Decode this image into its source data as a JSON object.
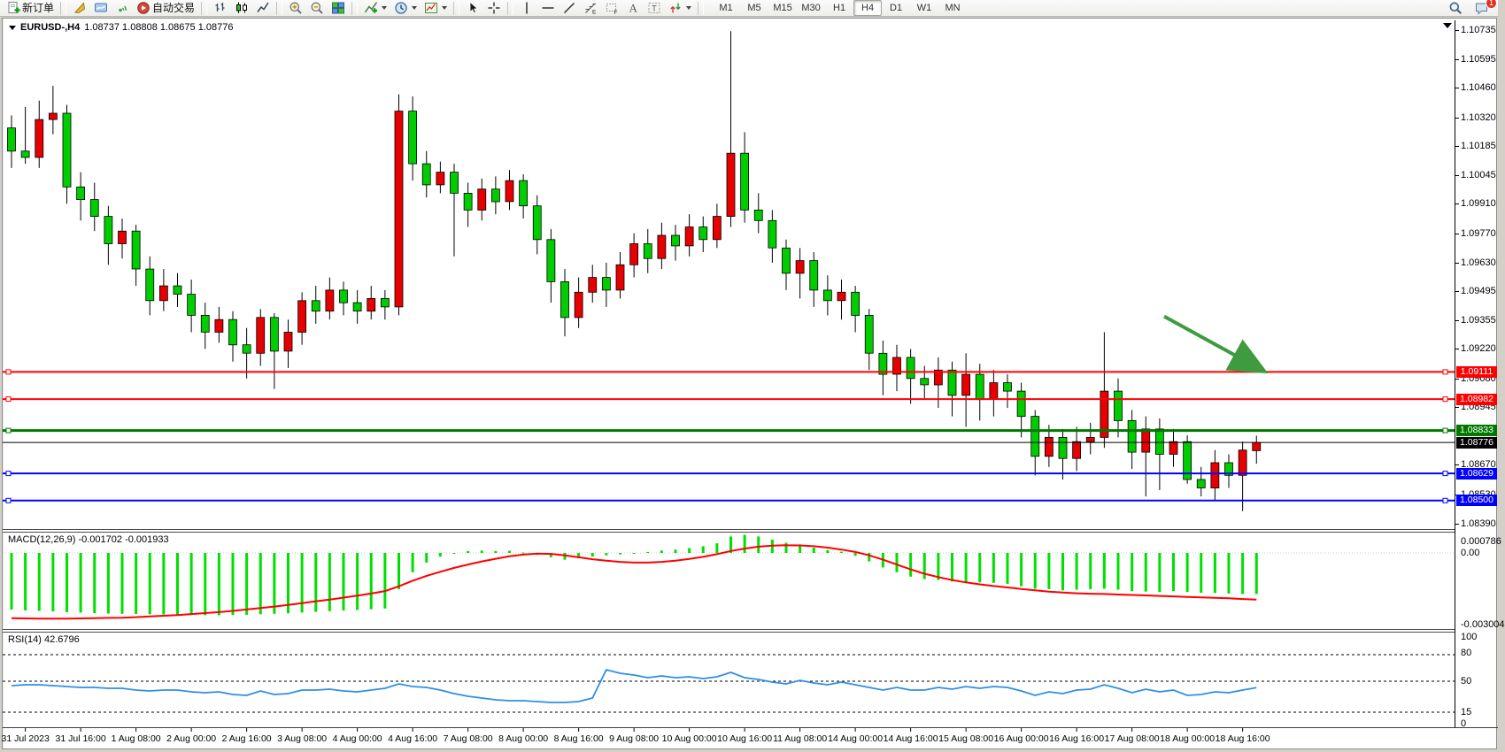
{
  "window": {
    "symbol_period": "EURUSD-,H4",
    "quote_line": "1.08737 1.08808 1.08675 1.08776"
  },
  "toolbar": {
    "items": [
      {
        "icon": "new-order",
        "label": "新订单"
      },
      {
        "sep": true
      },
      {
        "icon": "gold-seal"
      },
      {
        "icon": "trade-watch"
      },
      {
        "icon": "signal"
      },
      {
        "icon": "auto-trading",
        "label": "自动交易"
      },
      {
        "sep": true
      },
      {
        "icon": "chart-bars"
      },
      {
        "icon": "chart-candles"
      },
      {
        "icon": "chart-line"
      },
      {
        "sep": true
      },
      {
        "icon": "zoom-in"
      },
      {
        "icon": "zoom-out"
      },
      {
        "icon": "tile-windows"
      },
      {
        "sep": true
      },
      {
        "icon": "add-indicator",
        "caret": true
      },
      {
        "icon": "periods-clock",
        "caret": true
      },
      {
        "icon": "templates",
        "caret": true
      },
      {
        "sep": true
      },
      {
        "icon": "cursor"
      },
      {
        "icon": "crosshair"
      },
      {
        "sep": true
      },
      {
        "icon": "vertical-line"
      },
      {
        "icon": "horizontal-line"
      },
      {
        "icon": "trendline"
      },
      {
        "icon": "fibonacci"
      },
      {
        "icon": "channel"
      },
      {
        "icon": "text"
      },
      {
        "icon": "text-label"
      },
      {
        "icon": "arrows",
        "caret": true
      },
      {
        "sep": true
      }
    ],
    "timeframes": [
      "M1",
      "M5",
      "M15",
      "M30",
      "H1",
      "H4",
      "D1",
      "W1",
      "MN"
    ],
    "active_timeframe": "H4",
    "right": [
      {
        "icon": "search"
      },
      {
        "icon": "alerts",
        "badge": "1"
      }
    ]
  },
  "chart_data": {
    "type": "candlestick",
    "title": "EURUSD-,H4",
    "ohlc_header": {
      "open": "1.08737",
      "high": "1.08808",
      "low": "1.08675",
      "close": "1.08776"
    },
    "colors": {
      "bull": "#e60000",
      "bear": "#00cc00",
      "wick": "#000000",
      "macd_bar": "#00e000",
      "macd_signal": "#ff0000",
      "rsi_line": "#2e8fe5",
      "background": "#ffffff"
    },
    "price_axis_ticks": [
      "1.10735",
      "1.10595",
      "1.10460",
      "1.10320",
      "1.10185",
      "1.10045",
      "1.09910",
      "1.09770",
      "1.09630",
      "1.09495",
      "1.09355",
      "1.09220",
      "1.09080",
      "1.08945",
      "1.08670",
      "1.08530",
      "1.08390"
    ],
    "hlines": [
      {
        "price": 1.09111,
        "label": "1.09111",
        "color": "#ff0000",
        "width": 2,
        "markers": true
      },
      {
        "price": 1.08982,
        "label": "1.08982",
        "color": "#ff0000",
        "width": 2,
        "markers": true
      },
      {
        "price": 1.08833,
        "label": "1.08833",
        "color": "#007800",
        "width": 3,
        "markers": true
      },
      {
        "price": 1.08776,
        "label": "1.08776",
        "color": "#000000",
        "width": 1,
        "markers": false
      },
      {
        "price": 1.08629,
        "label": "1.08629",
        "color": "#0000ff",
        "width": 2,
        "markers": true
      },
      {
        "price": 1.085,
        "label": "1.08500",
        "color": "#0000ff",
        "width": 2,
        "markers": true
      }
    ],
    "x_labels": [
      "31 Jul 2023",
      "31 Jul 16:00",
      "1 Aug 08:00",
      "2 Aug 00:00",
      "2 Aug 16:00",
      "3 Aug 08:00",
      "4 Aug 00:00",
      "4 Aug 16:00",
      "7 Aug 08:00",
      "8 Aug 00:00",
      "8 Aug 16:00",
      "9 Aug 08:00",
      "10 Aug 00:00",
      "10 Aug 16:00",
      "11 Aug 08:00",
      "14 Aug 00:00",
      "14 Aug 16:00",
      "15 Aug 08:00",
      "16 Aug 00:00",
      "16 Aug 16:00",
      "17 Aug 08:00",
      "18 Aug 00:00",
      "18 Aug 16:00"
    ],
    "candles": [
      [
        1.1027,
        1.1033,
        1.1008,
        1.1016
      ],
      [
        1.1016,
        1.1037,
        1.101,
        1.1013
      ],
      [
        1.1013,
        1.104,
        1.1008,
        1.1031
      ],
      [
        1.1031,
        1.1047,
        1.1024,
        1.1034
      ],
      [
        1.1034,
        1.1038,
        1.0991,
        1.0999
      ],
      [
        1.0999,
        1.1006,
        1.0983,
        1.0993
      ],
      [
        1.0993,
        1.1001,
        1.0978,
        1.0985
      ],
      [
        1.0985,
        1.099,
        1.0962,
        1.0972
      ],
      [
        1.0972,
        1.0984,
        1.0965,
        1.0978
      ],
      [
        1.0978,
        1.0981,
        1.0952,
        1.096
      ],
      [
        1.096,
        1.0966,
        1.0938,
        1.0945
      ],
      [
        1.0945,
        1.096,
        1.094,
        1.0952
      ],
      [
        1.0952,
        1.0958,
        1.0942,
        1.0948
      ],
      [
        1.0948,
        1.0955,
        1.093,
        1.0938
      ],
      [
        1.0938,
        1.0944,
        1.0922,
        1.093
      ],
      [
        1.093,
        1.0942,
        1.0925,
        1.0936
      ],
      [
        1.0936,
        1.094,
        1.0916,
        1.0924
      ],
      [
        1.0924,
        1.0932,
        1.0908,
        1.092
      ],
      [
        1.092,
        1.0941,
        1.0914,
        1.0937
      ],
      [
        1.0937,
        1.0939,
        1.0903,
        1.0921
      ],
      [
        1.0921,
        1.0936,
        1.0913,
        1.093
      ],
      [
        1.093,
        1.0949,
        1.0924,
        1.0945
      ],
      [
        1.0945,
        1.0952,
        1.0934,
        1.094
      ],
      [
        1.094,
        1.0956,
        1.0936,
        1.095
      ],
      [
        1.095,
        1.0954,
        1.0938,
        1.0944
      ],
      [
        1.0944,
        1.095,
        1.0934,
        1.094
      ],
      [
        1.094,
        1.0952,
        1.0936,
        1.0946
      ],
      [
        1.0946,
        1.095,
        1.0936,
        1.0942
      ],
      [
        1.0942,
        1.1043,
        1.0938,
        1.1035
      ],
      [
        1.1035,
        1.1042,
        1.1002,
        1.101
      ],
      [
        1.101,
        1.1016,
        1.0994,
        1.1
      ],
      [
        1.1,
        1.1011,
        1.0996,
        1.1006
      ],
      [
        1.1006,
        1.101,
        1.0966,
        1.0996
      ],
      [
        1.0996,
        1.1001,
        1.098,
        1.0988
      ],
      [
        1.0988,
        1.1003,
        1.0983,
        1.0998
      ],
      [
        1.0998,
        1.1004,
        1.0986,
        1.0992
      ],
      [
        1.0992,
        1.1007,
        1.0988,
        1.1002
      ],
      [
        1.1002,
        1.1005,
        1.0984,
        1.099
      ],
      [
        1.099,
        1.0995,
        1.0967,
        1.0974
      ],
      [
        1.0974,
        1.0979,
        1.0944,
        1.0954
      ],
      [
        1.0954,
        1.096,
        1.0928,
        1.0937
      ],
      [
        1.0937,
        1.0956,
        1.0932,
        1.0949
      ],
      [
        1.0949,
        1.0962,
        1.0944,
        1.0956
      ],
      [
        1.0956,
        1.0963,
        1.0942,
        1.095
      ],
      [
        1.095,
        1.0968,
        1.0946,
        1.0962
      ],
      [
        1.0962,
        1.0977,
        1.0956,
        1.0972
      ],
      [
        1.0972,
        1.0979,
        1.0958,
        1.0965
      ],
      [
        1.0965,
        1.0982,
        1.096,
        1.0976
      ],
      [
        1.0976,
        1.0981,
        1.0964,
        1.0971
      ],
      [
        1.0971,
        1.0986,
        1.0966,
        1.098
      ],
      [
        1.098,
        1.0985,
        1.0968,
        1.0974
      ],
      [
        1.0974,
        1.0991,
        1.097,
        1.0985
      ],
      [
        1.0985,
        1.1073,
        1.098,
        1.1015
      ],
      [
        1.1015,
        1.1025,
        1.0982,
        1.0988
      ],
      [
        1.0988,
        1.0996,
        1.0977,
        1.0983
      ],
      [
        1.0983,
        1.0988,
        1.0963,
        1.097
      ],
      [
        1.097,
        1.0974,
        1.095,
        1.0958
      ],
      [
        1.0958,
        1.097,
        1.0946,
        1.0964
      ],
      [
        1.0964,
        1.0968,
        1.0942,
        1.095
      ],
      [
        1.095,
        1.0957,
        1.0938,
        1.0945
      ],
      [
        1.0945,
        1.0955,
        1.0936,
        1.0949
      ],
      [
        1.0949,
        1.0952,
        1.093,
        1.0938
      ],
      [
        1.0938,
        1.0941,
        1.0912,
        1.092
      ],
      [
        1.092,
        1.0926,
        1.09,
        1.091
      ],
      [
        1.091,
        1.0924,
        1.0902,
        1.0918
      ],
      [
        1.0918,
        1.0922,
        1.0896,
        1.0908
      ],
      [
        1.0908,
        1.0914,
        1.0898,
        1.0905
      ],
      [
        1.0905,
        1.0918,
        1.0894,
        1.0912
      ],
      [
        1.0912,
        1.0916,
        1.089,
        1.09
      ],
      [
        1.09,
        1.092,
        1.0885,
        1.091
      ],
      [
        1.091,
        1.0915,
        1.0888,
        1.0898
      ],
      [
        1.0898,
        1.0912,
        1.089,
        1.0906
      ],
      [
        1.0906,
        1.091,
        1.0894,
        1.0902
      ],
      [
        1.0902,
        1.0906,
        1.088,
        1.089
      ],
      [
        1.089,
        1.0893,
        1.0862,
        1.0871
      ],
      [
        1.0871,
        1.0886,
        1.0866,
        1.088
      ],
      [
        1.088,
        1.0884,
        1.086,
        1.087
      ],
      [
        1.087,
        1.0885,
        1.0864,
        1.0878
      ],
      [
        1.0878,
        1.0887,
        1.0872,
        1.088
      ],
      [
        1.088,
        1.093,
        1.0875,
        1.0902
      ],
      [
        1.0902,
        1.0908,
        1.088,
        1.0888
      ],
      [
        1.0888,
        1.0893,
        1.0865,
        1.0873
      ],
      [
        1.0873,
        1.089,
        1.0852,
        1.0884
      ],
      [
        1.0884,
        1.0889,
        1.0855,
        1.0872
      ],
      [
        1.0872,
        1.0884,
        1.0866,
        1.0878
      ],
      [
        1.0878,
        1.0881,
        1.0858,
        1.086
      ],
      [
        1.086,
        1.0866,
        1.0852,
        1.0856
      ],
      [
        1.0856,
        1.0874,
        1.085,
        1.0868
      ],
      [
        1.0868,
        1.0872,
        1.0856,
        1.0862
      ],
      [
        1.0862,
        1.0878,
        1.0845,
        1.0874
      ],
      [
        1.08737,
        1.08808,
        1.08675,
        1.08776
      ]
    ],
    "macd": {
      "label": "MACD(12,26,9) -0.001702 -0.001933",
      "main_value": -0.001702,
      "signal_value": -0.001933,
      "axis_labels": [
        "0.000786",
        "0.00",
        "-0.003004"
      ],
      "histogram": [
        -0.00235,
        -0.00238,
        -0.0024,
        -0.00242,
        -0.00245,
        -0.00247,
        -0.00249,
        -0.00251,
        -0.00252,
        -0.00253,
        -0.00254,
        -0.00255,
        -0.00256,
        -0.00257,
        -0.00258,
        -0.00258,
        -0.00257,
        -0.00256,
        -0.00254,
        -0.00252,
        -0.0025,
        -0.00247,
        -0.00244,
        -0.00241,
        -0.00238,
        -0.00236,
        -0.00233,
        -0.0023,
        -0.0015,
        -0.0008,
        -0.0004,
        -0.00015,
        0.0,
        8e-05,
        0.0001,
        8e-05,
        9e-05,
        2e-05,
        -8e-05,
        -0.00018,
        -0.00028,
        -0.00022,
        -0.00015,
        -0.0001,
        -6e-05,
        0.0,
        4e-05,
        0.0001,
        0.00014,
        0.0002,
        0.00028,
        0.0004,
        0.00068,
        0.00075,
        0.00068,
        0.00055,
        0.00042,
        0.00035,
        0.00022,
        0.00012,
        5e-05,
        -0.00012,
        -0.00035,
        -0.0006,
        -0.0008,
        -0.00098,
        -0.00108,
        -0.00112,
        -0.00118,
        -0.0012,
        -0.00122,
        -0.00124,
        -0.00128,
        -0.00138,
        -0.00148,
        -0.0015,
        -0.00155,
        -0.00152,
        -0.0015,
        -0.00148,
        -0.00152,
        -0.00158,
        -0.0016,
        -0.00162,
        -0.00158,
        -0.00162,
        -0.00165,
        -0.00166,
        -0.00168,
        -0.0017,
        -0.0017
      ],
      "signal": [
        -0.0027,
        -0.00271,
        -0.00272,
        -0.00272,
        -0.00272,
        -0.00271,
        -0.0027,
        -0.00269,
        -0.00268,
        -0.00266,
        -0.00263,
        -0.0026,
        -0.00257,
        -0.00253,
        -0.00249,
        -0.00245,
        -0.0024,
        -0.00234,
        -0.00228,
        -0.00222,
        -0.00215,
        -0.00208,
        -0.002,
        -0.00193,
        -0.00185,
        -0.00177,
        -0.00168,
        -0.00158,
        -0.00138,
        -0.00115,
        -0.00095,
        -0.00078,
        -0.00062,
        -0.00048,
        -0.00035,
        -0.00024,
        -0.00014,
        -7e-05,
        -3e-05,
        -4e-05,
        -0.0001,
        -0.00018,
        -0.00026,
        -0.00032,
        -0.00037,
        -0.0004,
        -0.0004,
        -0.00037,
        -0.00032,
        -0.00025,
        -0.00016,
        -5e-05,
        8e-05,
        0.00018,
        0.00026,
        0.0003,
        0.00032,
        0.00031,
        0.00028,
        0.00022,
        0.00014,
        4e-05,
        -0.0001,
        -0.00028,
        -0.00048,
        -0.00068,
        -0.00086,
        -0.001,
        -0.00112,
        -0.00122,
        -0.0013,
        -0.00137,
        -0.00143,
        -0.00149,
        -0.00155,
        -0.0016,
        -0.00164,
        -0.00167,
        -0.00169,
        -0.0017,
        -0.00172,
        -0.00174,
        -0.00176,
        -0.00178,
        -0.0018,
        -0.00182,
        -0.00184,
        -0.00186,
        -0.00188,
        -0.00191,
        -0.00193
      ]
    },
    "rsi": {
      "label": "RSI(14) 42.6796",
      "value": 42.6796,
      "axis_labels": [
        "100",
        "80",
        "50",
        "15",
        "0"
      ],
      "dashed_levels": [
        80,
        50,
        15
      ],
      "series": [
        45,
        46,
        46,
        45,
        44,
        43,
        43,
        42,
        42,
        40,
        39,
        40,
        40,
        38,
        37,
        38,
        35,
        34,
        39,
        35,
        36,
        40,
        40,
        41,
        39,
        38,
        40,
        42,
        47,
        44,
        43,
        40,
        36,
        33,
        31,
        29,
        28,
        28,
        27,
        26,
        26,
        27,
        31,
        63,
        59,
        57,
        54,
        56,
        54,
        55,
        53,
        55,
        60,
        54,
        52,
        49,
        47,
        51,
        48,
        46,
        49,
        46,
        43,
        40,
        43,
        40,
        40,
        43,
        41,
        44,
        42,
        44,
        43,
        39,
        34,
        38,
        36,
        40,
        41,
        46,
        42,
        37,
        41,
        38,
        40,
        34,
        35,
        38,
        37,
        40,
        42.7
      ]
    },
    "annotation_arrow": {
      "from_x": 1312,
      "from_price": 1.09375,
      "to_x": 1419,
      "to_price": 1.09128,
      "color": "#3f9b3f"
    }
  }
}
